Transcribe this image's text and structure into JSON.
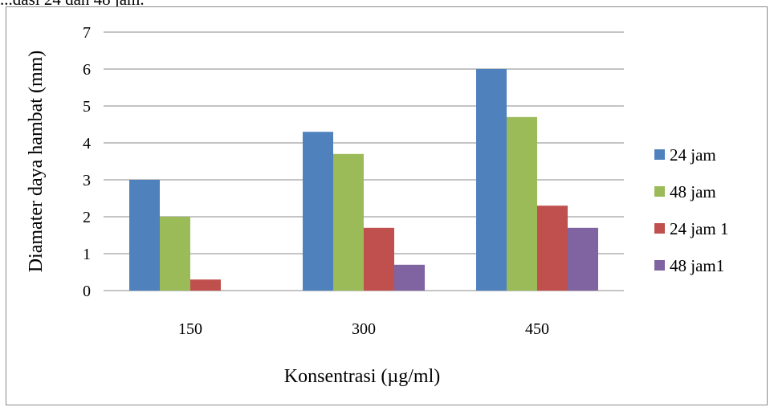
{
  "page": {
    "caption_fragment": "...dasi 24 dan 48 jam."
  },
  "chart_data": {
    "type": "bar",
    "title": "",
    "xlabel": "Konsentrasi (µg/ml)",
    "ylabel": "Diamater daya hambat (mm)",
    "categories": [
      "150",
      "300",
      "450"
    ],
    "ylim": [
      0,
      7
    ],
    "yticks": [
      "0",
      "1",
      "2",
      "3",
      "4",
      "5",
      "6",
      "7"
    ],
    "grid": true,
    "legend_position": "right",
    "series": [
      {
        "name": "24 jam",
        "color": "#4f81bd",
        "values": [
          3.0,
          4.3,
          6.0
        ]
      },
      {
        "name": "48 jam",
        "color": "#9bbb59",
        "values": [
          2.0,
          3.7,
          4.7
        ]
      },
      {
        "name": "24 jam 1",
        "color": "#c0504d",
        "values": [
          0.3,
          1.7,
          2.3
        ]
      },
      {
        "name": "48 jam1",
        "color": "#8064a2",
        "values": [
          0,
          0.7,
          1.7
        ]
      }
    ]
  }
}
